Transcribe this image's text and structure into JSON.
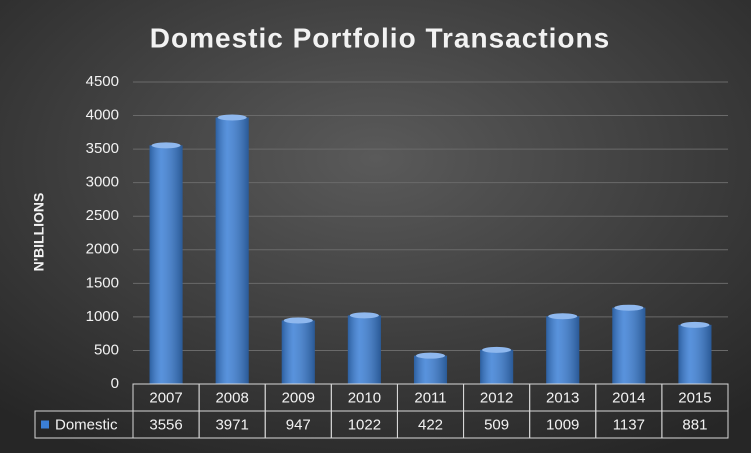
{
  "chart_data": {
    "type": "bar",
    "title": "Domestic Portfolio Transactions",
    "y_label": "N'BILLIONS",
    "categories": [
      "2007",
      "2008",
      "2009",
      "2010",
      "2011",
      "2012",
      "2013",
      "2014",
      "2015"
    ],
    "series": [
      {
        "name": "Domestic",
        "color": "#3b7fd6",
        "values": [
          3556,
          3971,
          947,
          1022,
          422,
          509,
          1009,
          1137,
          881
        ]
      }
    ],
    "ylim": [
      0,
      4500
    ],
    "yticks": [
      0,
      500,
      1000,
      1500,
      2000,
      2500,
      3000,
      3500,
      4000,
      4500
    ],
    "grid": true,
    "data_table": true
  }
}
